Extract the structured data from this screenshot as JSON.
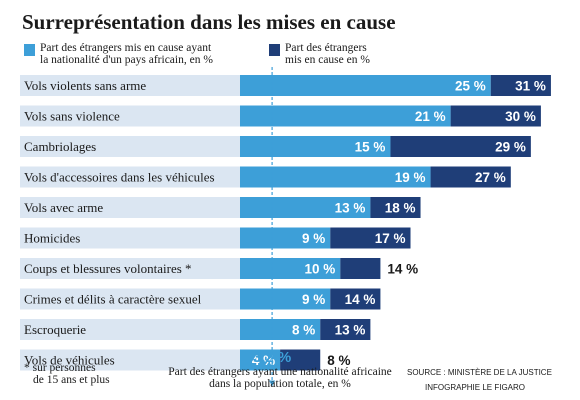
{
  "chart_data": {
    "type": "bar",
    "title": "Surreprésentation dans les mises en cause",
    "categories": [
      "Vols violents sans arme",
      "Vols sans violence",
      "Cambriolages",
      "Vols d'accessoires dans les véhicules",
      "Vols avec arme",
      "Homicides",
      "Coups et blessures volontaires *",
      "Crimes et délits à caractère sexuel",
      "Escroquerie",
      "Vols de véhicules"
    ],
    "series": [
      {
        "name": "Part des étrangers mis en cause ayant la nationalité d'un pays africain, en %",
        "values": [
          25,
          21,
          15,
          19,
          13,
          9,
          10,
          9,
          8,
          4
        ],
        "labels": [
          "25 %",
          "21 %",
          "15 %",
          "19 %",
          "13 %",
          "9 %",
          "10 %",
          "9 %",
          "8 %",
          "4 %"
        ],
        "color": "#3d9fd8"
      },
      {
        "name": "Part des étrangers mis en cause en %",
        "values": [
          31,
          30,
          29,
          27,
          18,
          17,
          14,
          14,
          13,
          8
        ],
        "labels": [
          "31 %",
          "30 %",
          "29 %",
          "27 %",
          "18 %",
          "17 %",
          "14 %",
          "14 %",
          "13 %",
          "8 %"
        ],
        "color": "#1f3e78"
      }
    ],
    "reference": {
      "value": 3.2,
      "value_label": "3,2 %",
      "label": "Part des étrangers ayant une nationalité africaine dans la population totale, en %"
    },
    "legend_position": "top",
    "category_band_color": "#dbe6f2",
    "footnote": "* sur personnes de 15 ans et plus",
    "source": "SOURCE : MINISTÈRE DE LA JUSTICE",
    "credit": "INFOGRAPHIE LE FIGARO",
    "xlim": [
      0,
      31
    ]
  }
}
